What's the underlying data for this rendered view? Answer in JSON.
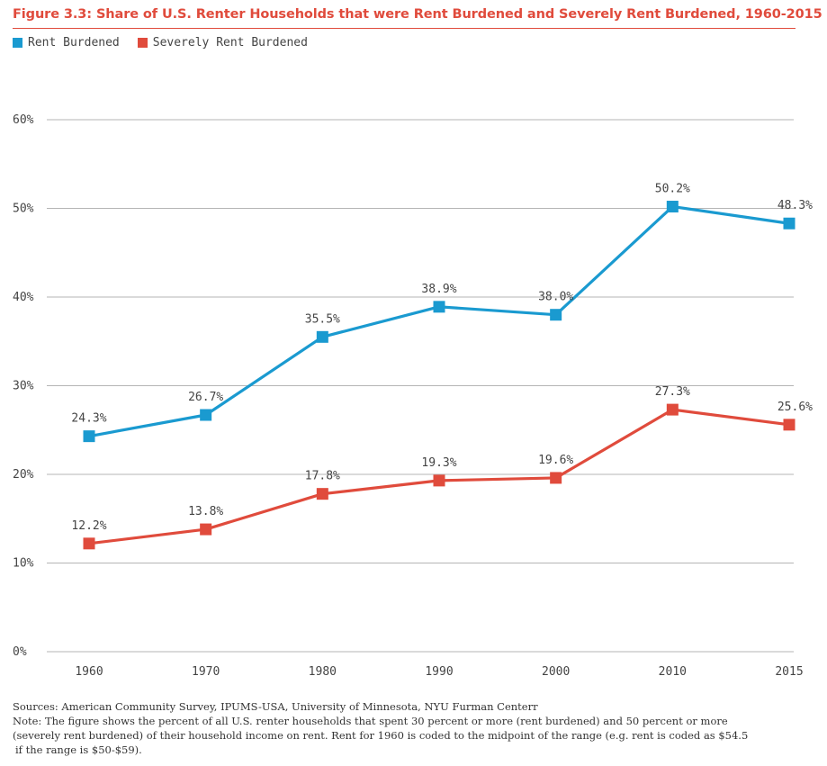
{
  "figure": {
    "title": "Figure 3.3: Share of U.S. Renter Households that were Rent Burdened and Severely Rent Burdened, 1960-2015",
    "sources": "Sources: American Community Survey, IPUMS-USA, University of Minnesota, NYU Furman Centerr",
    "note_line1": "Note: The figure shows the percent of all U.S. renter households that spent 30 percent or more (rent burdened) and 50 percent or more",
    "note_line2": "(severely rent burdened) of their household income on rent. Rent for 1960 is coded to the midpoint of the range (e.g. rent is coded as $54.5",
    "note_line3": "if the range is $50-$59)."
  },
  "legend": {
    "items": [
      {
        "label": "Rent Burdened",
        "color": "#1a9ad0"
      },
      {
        "label": "Severely Rent Burdened",
        "color": "#e04b3c"
      }
    ]
  },
  "chart_data": {
    "type": "line",
    "title": "Figure 3.3: Share of U.S. Renter Households that were Rent Burdened and Severely Rent Burdened, 1960-2015",
    "xlabel": "",
    "ylabel": "",
    "categories": [
      "1960",
      "1970",
      "1980",
      "1990",
      "2000",
      "2010",
      "2015"
    ],
    "y_ticks": [
      0,
      10,
      20,
      30,
      40,
      50,
      60
    ],
    "y_tick_labels": [
      "0%",
      "10%",
      "20%",
      "30%",
      "40%",
      "50%",
      "60%"
    ],
    "ylim": [
      0,
      60
    ],
    "grid": true,
    "legend_position": "top-left",
    "series": [
      {
        "name": "Rent Burdened",
        "color": "#1a9ad0",
        "values": [
          24.3,
          26.7,
          35.5,
          38.9,
          38.0,
          50.2,
          48.3
        ],
        "labels": [
          "24.3%",
          "26.7%",
          "35.5%",
          "38.9%",
          "38.0%",
          "50.2%",
          "48.3%"
        ]
      },
      {
        "name": "Severely Rent Burdened",
        "color": "#e04b3c",
        "values": [
          12.2,
          13.8,
          17.8,
          19.3,
          19.6,
          27.3,
          25.6
        ],
        "labels": [
          "12.2%",
          "13.8%",
          "17.8%",
          "19.3%",
          "19.6%",
          "27.3%",
          "25.6%"
        ]
      }
    ]
  }
}
